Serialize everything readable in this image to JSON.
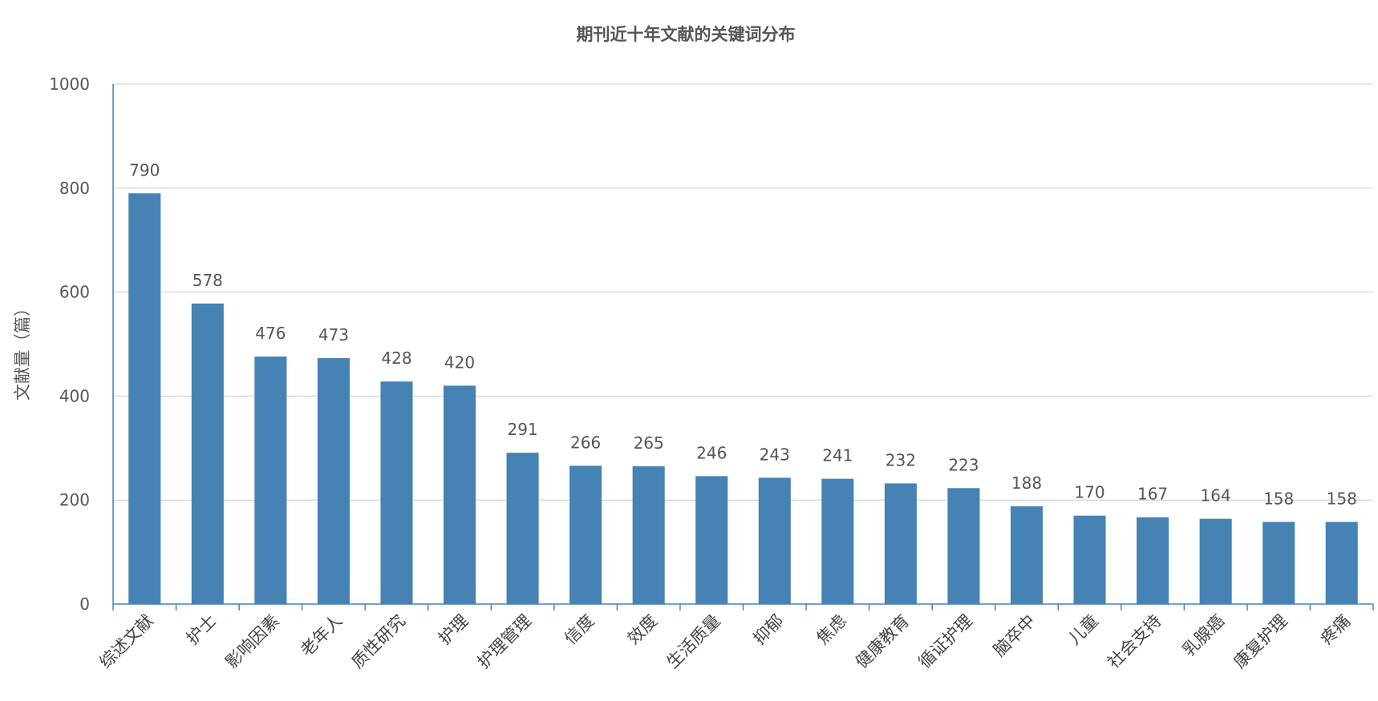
{
  "chart_data": {
    "type": "bar",
    "title": "期刊近十年文献的关键词分布",
    "xlabel": "",
    "ylabel": "文献量（篇）",
    "ylim": [
      0,
      1000
    ],
    "yticks": [
      0,
      200,
      400,
      600,
      800,
      1000
    ],
    "grid": true,
    "bar_color": "#4682b4",
    "categories": [
      "综述文献",
      "护士",
      "影响因素",
      "老年人",
      "质性研究",
      "护理",
      "护理管理",
      "信度",
      "效度",
      "生活质量",
      "抑郁",
      "焦虑",
      "健康教育",
      "循证护理",
      "脑卒中",
      "儿童",
      "社会支持",
      "乳腺癌",
      "康复护理",
      "疼痛"
    ],
    "values": [
      790,
      578,
      476,
      473,
      428,
      420,
      291,
      266,
      265,
      246,
      243,
      241,
      232,
      223,
      188,
      170,
      167,
      164,
      158,
      158
    ]
  }
}
